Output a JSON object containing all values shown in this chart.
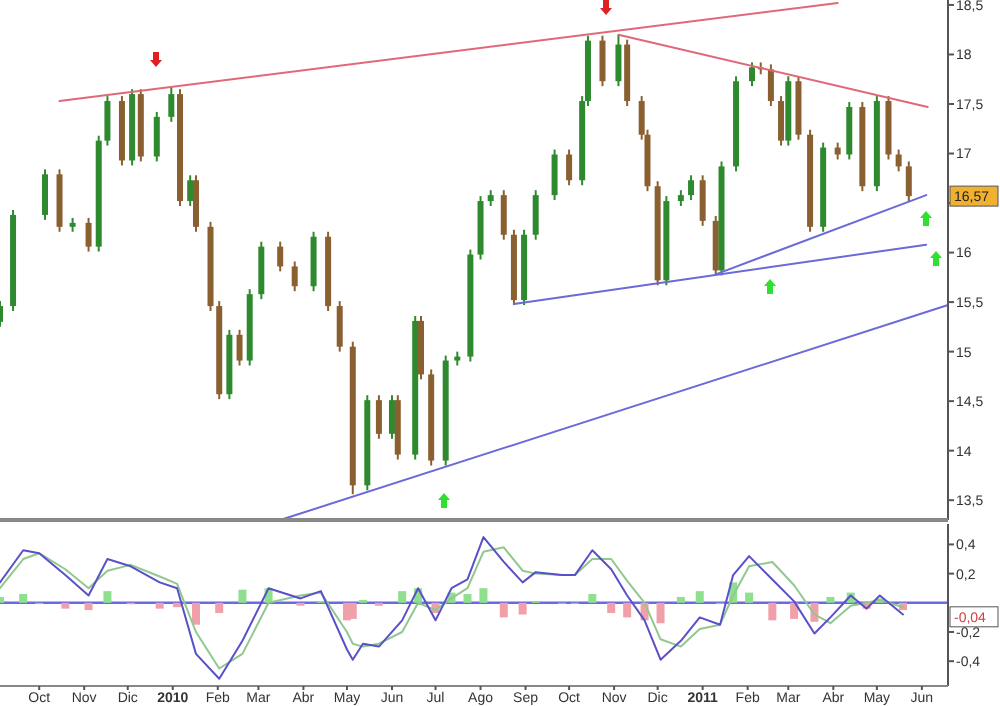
{
  "chart_data": [
    {
      "type": "candlestick",
      "xlim": [
        "2009-09-04",
        "2011-06-19"
      ],
      "ylim": [
        13.3,
        18.55
      ],
      "tick_labels": "y",
      "yticks": [
        {
          "value": 13.5,
          "label": "13,5"
        },
        14,
        {
          "value": 14.5,
          "label": "14,5"
        },
        15,
        {
          "value": 15.5,
          "label": "15,5"
        },
        16,
        {
          "value": 16.5,
          "label": null
        },
        17,
        {
          "value": 17.5,
          "label": "17,5"
        },
        18,
        {
          "value": 18.5,
          "label": "18,5"
        }
      ],
      "x": [
        "2009-09-04",
        "2009-09-13",
        "2009-10-05",
        "2009-10-15",
        "2009-10-24",
        "2009-11-04",
        "2009-11-11",
        "2009-11-17",
        "2009-11-27",
        "2009-12-04",
        "2009-12-10",
        "2009-12-21",
        "2009-12-31",
        "2010-01-06",
        "2010-01-13",
        "2010-01-17",
        "2010-01-27",
        "2010-02-02",
        "2010-02-09",
        "2010-02-16",
        "2010-02-23",
        "2010-03-03",
        "2010-03-16",
        "2010-03-26",
        "2010-04-08",
        "2010-04-18",
        "2010-04-26",
        "2010-05-05",
        "2010-05-15",
        "2010-05-23",
        "2010-06-01",
        "2010-06-05",
        "2010-06-17",
        "2010-06-21",
        "2010-06-28",
        "2010-07-08",
        "2010-07-16",
        "2010-07-25",
        "2010-08-01",
        "2010-08-08",
        "2010-08-17",
        "2010-08-24",
        "2010-08-31",
        "2010-09-08",
        "2010-09-21",
        "2010-10-01",
        "2010-10-10",
        "2010-10-14",
        "2010-10-24",
        "2010-11-04",
        "2010-11-10",
        "2010-11-20",
        "2010-11-24",
        "2010-12-01",
        "2010-12-07",
        "2010-12-17",
        "2010-12-24",
        "2011-01-01",
        "2011-01-10",
        "2011-01-14",
        "2011-01-24",
        "2011-02-04",
        "2011-02-10",
        "2011-02-17",
        "2011-02-24",
        "2011-03-01",
        "2011-03-08",
        "2011-03-16",
        "2011-03-25",
        "2011-04-04",
        "2011-04-12",
        "2011-04-21",
        "2011-05-01",
        "2011-05-09",
        "2011-05-16",
        "2011-05-23"
      ],
      "ohlc": [
        [
          15.3,
          15.51,
          15.25,
          15.46
        ],
        [
          15.46,
          16.43,
          15.41,
          16.38
        ],
        [
          16.38,
          16.84,
          16.33,
          16.79
        ],
        [
          16.79,
          16.84,
          16.21,
          16.26
        ],
        [
          16.26,
          16.35,
          16.21,
          16.3
        ],
        [
          16.3,
          16.35,
          16.01,
          16.06
        ],
        [
          16.06,
          17.18,
          16.01,
          17.13
        ],
        [
          17.13,
          17.58,
          17.08,
          17.53
        ],
        [
          17.53,
          17.58,
          16.88,
          16.93
        ],
        [
          16.93,
          17.65,
          16.88,
          17.6
        ],
        [
          17.6,
          17.65,
          16.92,
          16.97
        ],
        [
          16.97,
          17.42,
          16.92,
          17.37
        ],
        [
          17.37,
          17.67,
          17.32,
          17.6
        ],
        [
          17.6,
          17.65,
          16.47,
          16.52
        ],
        [
          16.52,
          16.78,
          16.47,
          16.73
        ],
        [
          16.73,
          16.78,
          16.21,
          16.26
        ],
        [
          16.26,
          16.31,
          15.41,
          15.46
        ],
        [
          15.46,
          15.51,
          14.52,
          14.57
        ],
        [
          14.57,
          15.22,
          14.52,
          15.17
        ],
        [
          15.17,
          15.22,
          14.86,
          14.91
        ],
        [
          14.91,
          15.63,
          14.86,
          15.58
        ],
        [
          15.58,
          16.11,
          15.53,
          16.06
        ],
        [
          16.06,
          16.11,
          15.81,
          15.86
        ],
        [
          15.86,
          15.91,
          15.61,
          15.66
        ],
        [
          15.66,
          16.21,
          15.61,
          16.16
        ],
        [
          16.16,
          16.21,
          15.41,
          15.46
        ],
        [
          15.46,
          15.51,
          15.0,
          15.05
        ],
        [
          15.05,
          15.1,
          13.56,
          13.65
        ],
        [
          13.65,
          14.56,
          13.6,
          14.51
        ],
        [
          14.51,
          14.56,
          14.12,
          14.17
        ],
        [
          14.17,
          14.56,
          14.12,
          14.51
        ],
        [
          14.51,
          14.56,
          13.91,
          13.96
        ],
        [
          13.96,
          15.36,
          13.91,
          15.31
        ],
        [
          15.31,
          15.36,
          14.72,
          14.77
        ],
        [
          14.77,
          14.82,
          13.85,
          13.9
        ],
        [
          13.9,
          14.96,
          13.85,
          14.91
        ],
        [
          14.91,
          15.0,
          14.86,
          14.95
        ],
        [
          14.95,
          16.03,
          14.9,
          15.98
        ],
        [
          15.98,
          16.57,
          15.93,
          16.52
        ],
        [
          16.52,
          16.63,
          16.47,
          16.58
        ],
        [
          16.58,
          16.63,
          16.13,
          16.18
        ],
        [
          16.18,
          16.23,
          15.47,
          15.52
        ],
        [
          15.52,
          16.23,
          15.47,
          16.18
        ],
        [
          16.18,
          16.63,
          16.13,
          16.58
        ],
        [
          16.58,
          17.04,
          16.53,
          16.99
        ],
        [
          16.99,
          17.04,
          16.68,
          16.73
        ],
        [
          16.73,
          17.58,
          16.68,
          17.53
        ],
        [
          17.53,
          18.19,
          17.48,
          18.14
        ],
        [
          18.14,
          18.19,
          17.68,
          17.73
        ],
        [
          17.73,
          18.2,
          17.68,
          18.1
        ],
        [
          18.1,
          18.15,
          17.48,
          17.53
        ],
        [
          17.53,
          17.58,
          17.14,
          17.19
        ],
        [
          17.19,
          17.24,
          16.62,
          16.67
        ],
        [
          16.67,
          16.72,
          15.67,
          15.72
        ],
        [
          15.72,
          16.57,
          15.67,
          16.52
        ],
        [
          16.52,
          16.63,
          16.47,
          16.58
        ],
        [
          16.58,
          16.78,
          16.53,
          16.73
        ],
        [
          16.73,
          16.78,
          16.27,
          16.32
        ],
        [
          16.32,
          16.37,
          15.77,
          15.82
        ],
        [
          15.82,
          16.92,
          15.77,
          16.87
        ],
        [
          16.87,
          17.78,
          16.82,
          17.73
        ],
        [
          17.73,
          17.92,
          17.68,
          17.87
        ],
        [
          17.87,
          17.92,
          17.8,
          17.85
        ],
        [
          17.85,
          17.9,
          17.48,
          17.53
        ],
        [
          17.53,
          17.58,
          17.08,
          17.13
        ],
        [
          17.13,
          17.78,
          17.08,
          17.73
        ],
        [
          17.73,
          17.78,
          17.14,
          17.19
        ],
        [
          17.19,
          17.24,
          16.21,
          16.26
        ],
        [
          16.26,
          17.11,
          16.21,
          17.06
        ],
        [
          17.06,
          17.11,
          16.94,
          16.99
        ],
        [
          16.99,
          17.52,
          16.94,
          17.47
        ],
        [
          17.47,
          17.52,
          16.62,
          16.67
        ],
        [
          16.67,
          17.58,
          16.62,
          17.53
        ],
        [
          17.53,
          17.58,
          16.94,
          16.99
        ],
        [
          16.99,
          17.04,
          16.82,
          16.87
        ],
        [
          16.87,
          16.92,
          16.52,
          16.57
        ]
      ],
      "series": [
        {
          "type": "line",
          "color": "#e06878",
          "x": [
            "2009-10-15",
            "2011-04-04"
          ],
          "values": [
            17.53,
            18.52
          ]
        },
        {
          "type": "line",
          "color": "#e06878",
          "x": [
            "2010-11-04",
            "2011-06-05"
          ],
          "values": [
            18.2,
            17.47
          ]
        },
        {
          "type": "line",
          "color": "#6a6ad8",
          "x": [
            "2010-03-16",
            "2011-06-19"
          ],
          "values": [
            13.3,
            15.47
          ]
        },
        {
          "type": "line",
          "color": "#6a6ad8",
          "x": [
            "2010-08-24",
            "2011-06-04"
          ],
          "values": [
            15.48,
            16.08
          ]
        },
        {
          "type": "line",
          "color": "#6a6ad8",
          "x": [
            "2011-01-10",
            "2011-06-04"
          ],
          "values": [
            15.78,
            16.58
          ]
        }
      ],
      "annotations": [
        {
          "text": "16,57",
          "y": 16.57
        }
      ]
    },
    {
      "type": "line",
      "xlim": [
        "2009-09-04",
        "2011-06-19"
      ],
      "ylim": [
        -0.57,
        0.54
      ],
      "xticks": [
        {
          "value": "2009-10-01",
          "label": "Oct"
        },
        {
          "value": "2009-11-01",
          "label": "Nov"
        },
        {
          "value": "2009-12-01",
          "label": "Dic"
        },
        {
          "value": "2010-01-01",
          "label": "2010"
        },
        {
          "value": "2010-02-01",
          "label": "Feb"
        },
        {
          "value": "2010-03-01",
          "label": "Mar"
        },
        {
          "value": "2010-04-01",
          "label": "Abr"
        },
        {
          "value": "2010-05-01",
          "label": "May"
        },
        {
          "value": "2010-06-01",
          "label": "Jun"
        },
        {
          "value": "2010-07-01",
          "label": "Jul"
        },
        {
          "value": "2010-08-01",
          "label": "Ago"
        },
        {
          "value": "2010-09-01",
          "label": "Sep"
        },
        {
          "value": "2010-10-01",
          "label": "Oct"
        },
        {
          "value": "2010-11-01",
          "label": "Nov"
        },
        {
          "value": "2010-12-01",
          "label": "Dic"
        },
        {
          "value": "2011-01-01",
          "label": "2011"
        },
        {
          "value": "2011-02-01",
          "label": "Feb"
        },
        {
          "value": "2011-03-01",
          "label": "Mar"
        },
        {
          "value": "2011-04-01",
          "label": "Abr"
        },
        {
          "value": "2011-05-01",
          "label": "May"
        },
        {
          "value": "2011-06-01",
          "label": "Jun"
        }
      ],
      "yticks": [
        {
          "value": -0.4,
          "label": "-0,4"
        },
        {
          "value": -0.2,
          "label": "-0,2"
        },
        {
          "value": 0.2,
          "label": "0,2"
        },
        {
          "value": 0.4,
          "label": "0,4"
        }
      ],
      "x": [
        "2009-09-04",
        "2009-09-20",
        "2009-10-01",
        "2009-10-19",
        "2009-11-04",
        "2009-11-17",
        "2009-12-03",
        "2009-12-23",
        "2010-01-04",
        "2010-01-17",
        "2010-02-02",
        "2010-02-18",
        "2010-03-08",
        "2010-03-30",
        "2010-04-13",
        "2010-05-01",
        "2010-05-05",
        "2010-05-12",
        "2010-05-23",
        "2010-06-08",
        "2010-06-19",
        "2010-07-01",
        "2010-07-12",
        "2010-07-23",
        "2010-08-03",
        "2010-08-17",
        "2010-08-30",
        "2010-09-08",
        "2010-09-26",
        "2010-10-05",
        "2010-10-17",
        "2010-10-30",
        "2010-11-10",
        "2010-11-22",
        "2010-12-03",
        "2010-12-17",
        "2010-12-30",
        "2011-01-13",
        "2011-01-22",
        "2011-02-02",
        "2011-02-18",
        "2011-03-05",
        "2011-03-19",
        "2011-03-30",
        "2011-04-13",
        "2011-04-24",
        "2011-05-03",
        "2011-05-19"
      ],
      "series": [
        {
          "type": "bar",
          "colors": [
            "#8ee08e",
            "#8ee08e",
            "#8ee08e",
            "#f0a0a8",
            "#f0a0a8",
            "#8ee08e",
            "#f0a0a8",
            "#f0a0a8",
            "#f0a0a8",
            "#f0a0a8",
            "#f0a0a8",
            "#8ee08e",
            "#8ee08e",
            "#f0a0a8",
            "#8ee08e",
            "#f0a0a8",
            "#f0a0a8",
            "#8ee08e",
            "#f0a0a8",
            "#8ee08e",
            "#8ee08e",
            "#f0a0a8",
            "#8ee08e",
            "#8ee08e",
            "#8ee08e",
            "#f0a0a8",
            "#f0a0a8",
            "#8ee08e",
            "#8ee08e",
            "#8ee08e",
            "#8ee08e",
            "#f0a0a8",
            "#f0a0a8",
            "#f0a0a8",
            "#f0a0a8",
            "#8ee08e",
            "#8ee08e",
            "#8ee08e",
            "#8ee08e",
            "#8ee08e",
            "#f0a0a8",
            "#f0a0a8",
            "#f0a0a8",
            "#8ee08e",
            "#8ee08e",
            "#f0a0a8",
            "#8ee08e",
            "#f0a0a8"
          ],
          "values": [
            0.04,
            0.06,
            0,
            -0.04,
            -0.05,
            0.08,
            -0.01,
            -0.04,
            -0.03,
            -0.15,
            -0.07,
            0.09,
            0.1,
            -0.02,
            0.01,
            -0.12,
            -0.11,
            0.02,
            -0.02,
            0.08,
            0.1,
            -0.07,
            0.07,
            0.06,
            0.1,
            -0.1,
            -0.08,
            0.01,
            0,
            0,
            0.06,
            -0.07,
            -0.1,
            -0.12,
            -0.14,
            0.04,
            0.08,
            0,
            0.14,
            0.07,
            -0.12,
            -0.11,
            -0.13,
            0.04,
            0.07,
            -0.04,
            0.03,
            -0.05
          ]
        },
        {
          "type": "line",
          "color": "#90c890",
          "values": [
            0.1,
            0.3,
            0.34,
            0.23,
            0.1,
            0.22,
            0.26,
            0.18,
            0.13,
            -0.2,
            -0.45,
            -0.35,
            0,
            0.05,
            0.07,
            -0.2,
            -0.28,
            -0.3,
            -0.28,
            -0.2,
            0,
            -0.05,
            0.03,
            0.1,
            0.35,
            0.38,
            0.22,
            0.2,
            0.19,
            0.19,
            0.3,
            0.3,
            0.15,
            0,
            -0.25,
            -0.3,
            -0.18,
            -0.15,
            0.05,
            0.25,
            0.28,
            0.12,
            -0.08,
            -0.14,
            -0.02,
            0,
            0.02,
            -0.03
          ]
        },
        {
          "type": "line",
          "color": "#5a50c8",
          "values": [
            0.14,
            0.36,
            0.34,
            0.19,
            0.05,
            0.3,
            0.25,
            0.14,
            0.1,
            -0.35,
            -0.52,
            -0.26,
            0.1,
            0.03,
            0.08,
            -0.32,
            -0.39,
            -0.28,
            -0.3,
            -0.12,
            0.1,
            -0.12,
            0.1,
            0.16,
            0.45,
            0.28,
            0.14,
            0.21,
            0.19,
            0.19,
            0.36,
            0.23,
            0.05,
            -0.12,
            -0.39,
            -0.26,
            -0.1,
            -0.15,
            0.19,
            0.32,
            0.16,
            0.01,
            -0.21,
            -0.1,
            0.05,
            -0.04,
            0.05,
            -0.08
          ]
        }
      ],
      "ref_lines": [
        {
          "axis": "y",
          "value": 0,
          "color": "#6a6ae8"
        }
      ],
      "annotations": [
        "-0,04"
      ]
    }
  ]
}
